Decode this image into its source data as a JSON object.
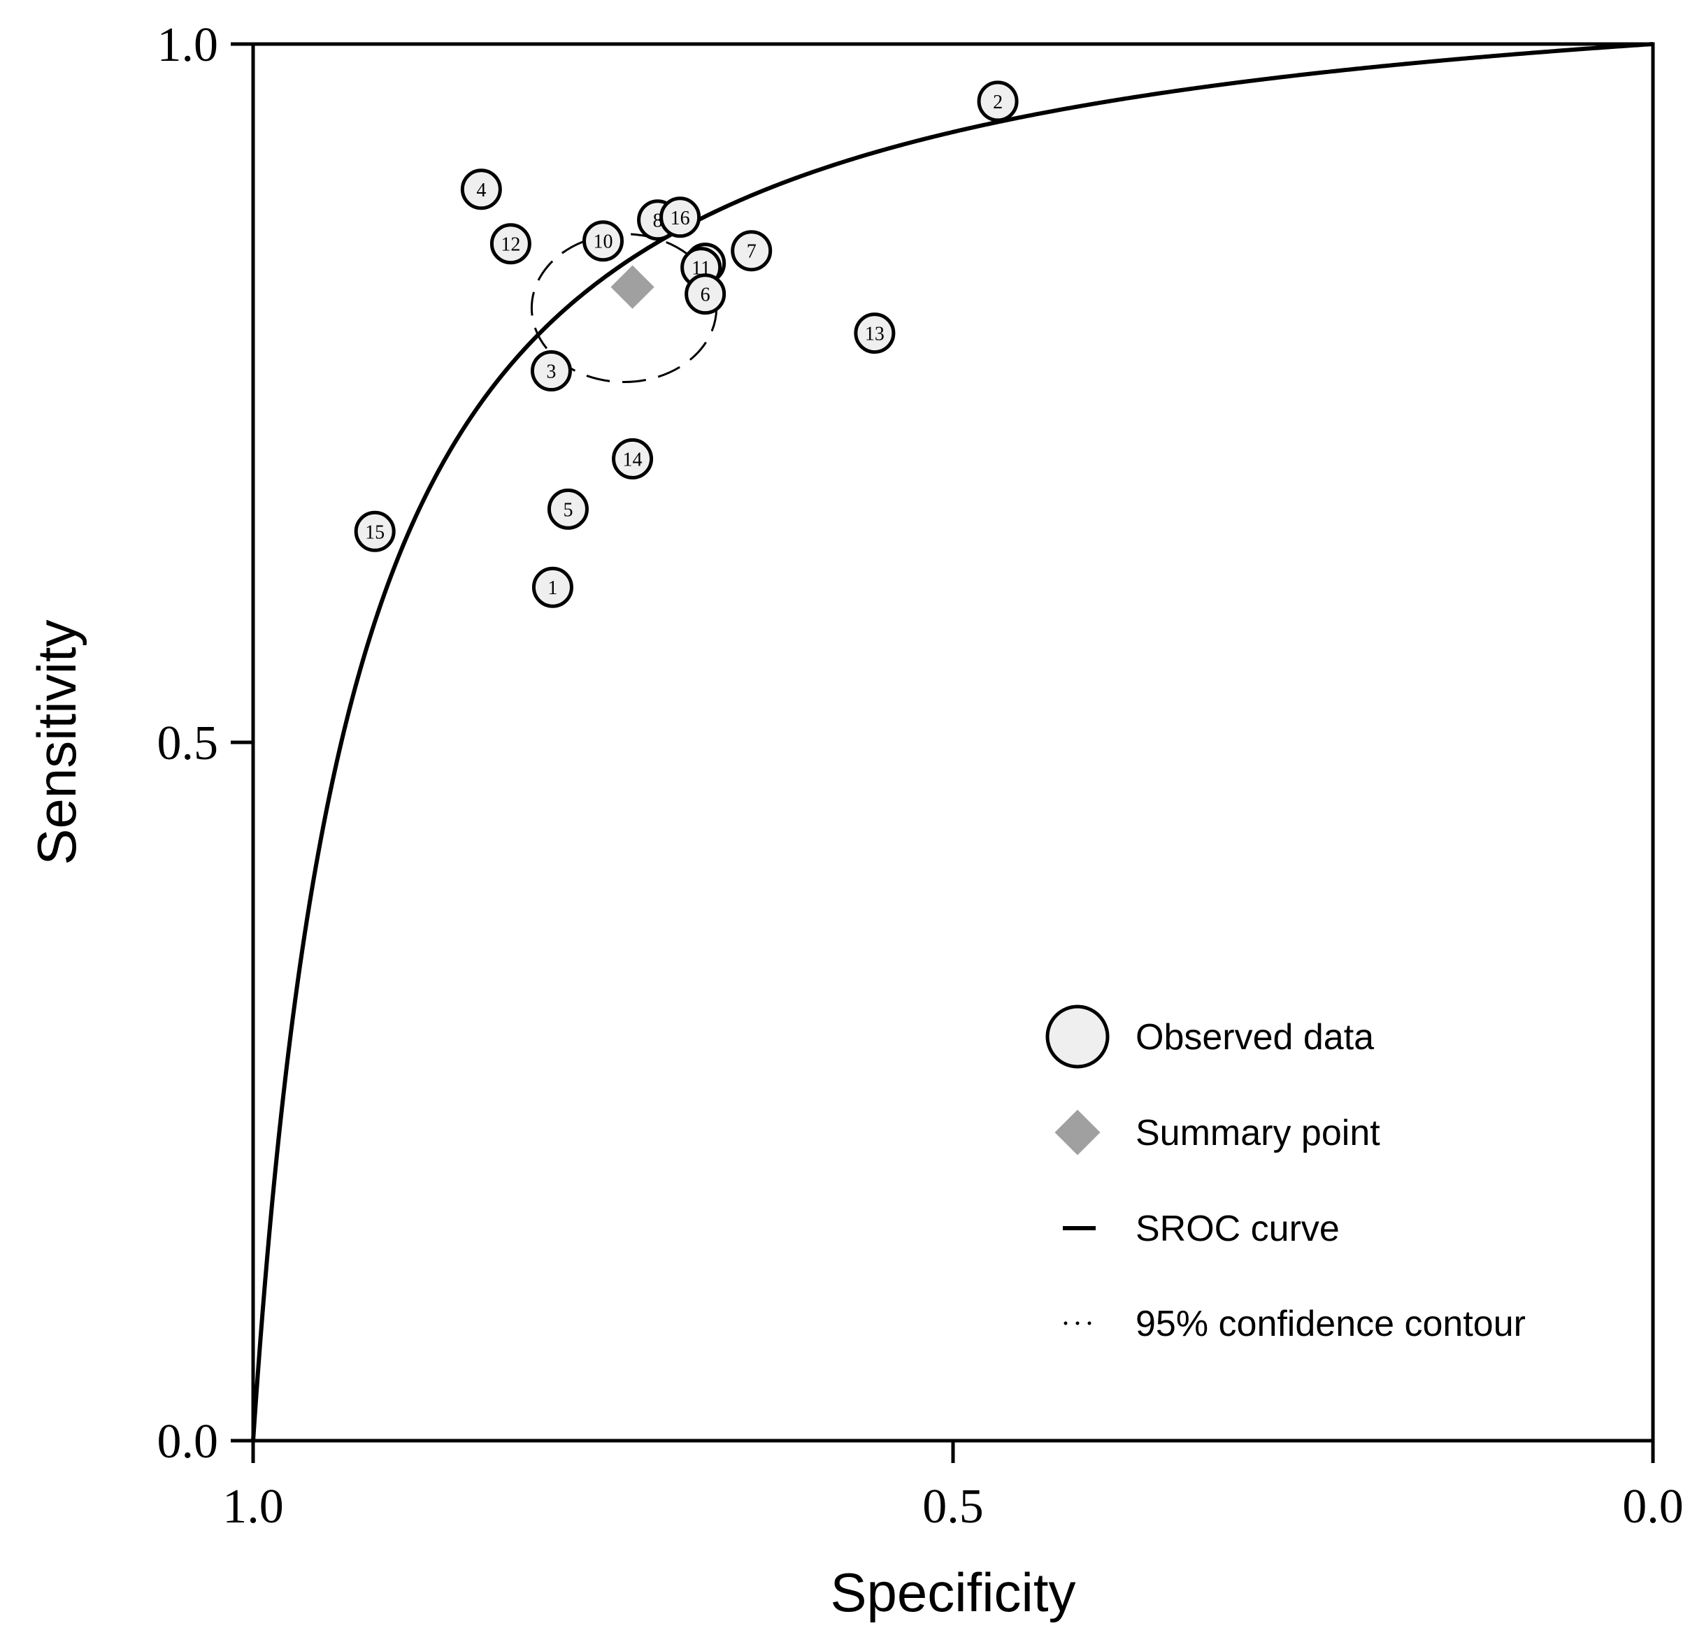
{
  "chart_data": {
    "type": "scatter",
    "title": "",
    "xlabel": "Specificity",
    "ylabel": "Sensitivity",
    "xlim": [
      1.0,
      0.0
    ],
    "ylim": [
      0.0,
      1.0
    ],
    "x_reversed": true,
    "x_ticks": [
      "1.0",
      "0.5",
      "0.0"
    ],
    "y_ticks": [
      "1.0",
      "0.5",
      "0.0"
    ],
    "grid": false,
    "legend_position": "bottom-right",
    "colors": {
      "observed_fill": "#efefef",
      "summary_fill": "#a0a0a0",
      "line": "#000000"
    },
    "observed_data": [
      {
        "label": "2",
        "specificity": 0.468,
        "sensitivity": 0.959
      },
      {
        "label": "4",
        "specificity": 0.837,
        "sensitivity": 0.896
      },
      {
        "label": "12",
        "specificity": 0.816,
        "sensitivity": 0.857
      },
      {
        "label": "10",
        "specificity": 0.75,
        "sensitivity": 0.859
      },
      {
        "label": "8",
        "specificity": 0.711,
        "sensitivity": 0.874
      },
      {
        "label": "16",
        "specificity": 0.695,
        "sensitivity": 0.876
      },
      {
        "label": "7",
        "specificity": 0.644,
        "sensitivity": 0.852
      },
      {
        "label": "9",
        "specificity": 0.677,
        "sensitivity": 0.843
      },
      {
        "label": "11",
        "specificity": 0.68,
        "sensitivity": 0.84
      },
      {
        "label": "6",
        "specificity": 0.677,
        "sensitivity": 0.821
      },
      {
        "label": "13",
        "specificity": 0.556,
        "sensitivity": 0.793
      },
      {
        "label": "3",
        "specificity": 0.787,
        "sensitivity": 0.766
      },
      {
        "label": "14",
        "specificity": 0.729,
        "sensitivity": 0.703
      },
      {
        "label": "5",
        "specificity": 0.775,
        "sensitivity": 0.667
      },
      {
        "label": "15",
        "specificity": 0.913,
        "sensitivity": 0.651
      },
      {
        "label": "1",
        "specificity": 0.786,
        "sensitivity": 0.611
      }
    ],
    "summary_point": {
      "specificity": 0.729,
      "sensitivity": 0.826
    },
    "confidence_contour": {
      "center_specificity": 0.735,
      "center_sensitivity": 0.811,
      "radius_specificity": 0.066,
      "radius_sensitivity": 0.053
    },
    "sroc_curve": {
      "model": "symmetric logit-linear",
      "D": 2.7
    },
    "legend": [
      {
        "key": "observed",
        "label": "Observed data"
      },
      {
        "key": "summary",
        "label": "Summary point"
      },
      {
        "key": "sroc",
        "label": "SROC curve"
      },
      {
        "key": "contour",
        "label": "95% confidence contour"
      }
    ]
  }
}
